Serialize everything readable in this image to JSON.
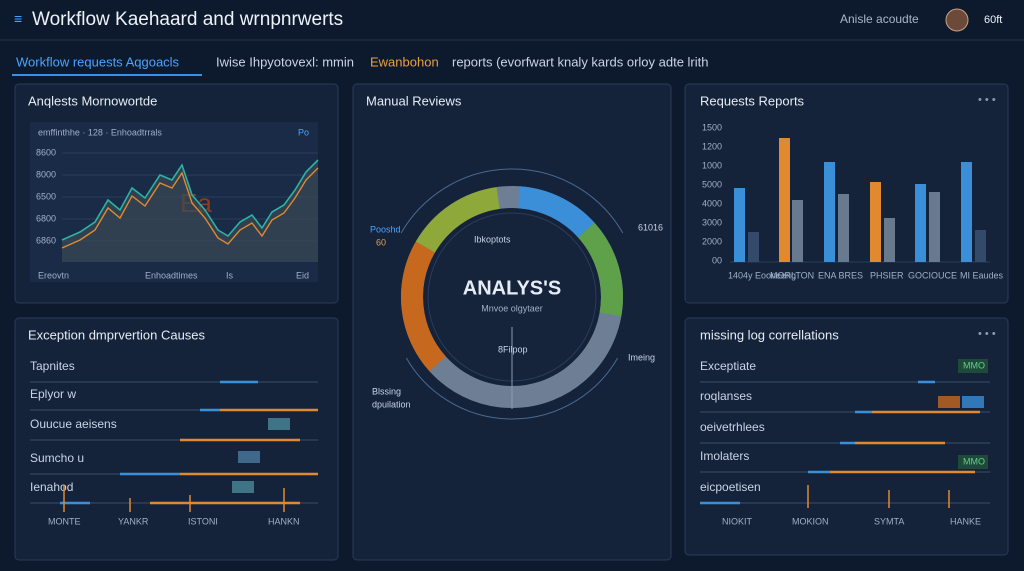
{
  "header": {
    "title": "Workflow Kaehaard and wrnpnrwerts",
    "user": "Anisle acoudte",
    "status": "60ft"
  },
  "tabs": {
    "active": "Workflow requests Aqgoacls",
    "breadcrumb": [
      "Iwise Ihpyotovexl: mmin",
      "Ewanbohon",
      "reports (evorfwart knaly kards orloy adte lrith"
    ]
  },
  "panels": [
    {
      "title": "Anqlests Mornowortde",
      "legend": "emffinthhe · 128 · Enhoadtrrals",
      "badge": "Po",
      "y_labels": [
        "8600",
        "8000",
        "6500",
        "6800",
        "6860"
      ],
      "x_labels": [
        "Ereovtn",
        "Enhoadtimes",
        "Is",
        "Eid"
      ]
    },
    {
      "title": "Manual Reviews",
      "center": "ANALYS'S",
      "center_sub": "Mnvoe olgytaer",
      "labels": [
        "Pooshd",
        "60",
        "Ibkoptots",
        "61016",
        "8Filpop",
        "Imeing",
        "Blssing",
        "dpuilation"
      ]
    },
    {
      "title": "Requests Reports",
      "y_labels": [
        "1500",
        "1200",
        "1000",
        "5000",
        "4000",
        "3000",
        "2000",
        "00"
      ],
      "x_labels": [
        "1404y Eooneeng",
        "MORLTON",
        "ENA BRES",
        "PHSIER",
        "GOCIOUCE",
        "MI Eaudes"
      ]
    },
    {
      "title": "Exception dmprvertion Causes",
      "rows": [
        "Tapnites",
        "Eplyor w",
        "Ouucue aeisens",
        "Sumcho u",
        "Ienahod"
      ],
      "x_labels": [
        "MONTE",
        "YANKR",
        "ISTONI",
        "HANKN"
      ]
    },
    {
      "title": "missing log correllations",
      "rows": [
        "Exceptiate",
        "roqlanses",
        "oeivetrhlees",
        "Imolaters",
        "eicpoetisen"
      ],
      "badges": [
        "MMO",
        "MMO"
      ],
      "x_labels": [
        "NIOKIT",
        "MOKION",
        "SYMTA",
        "HANKE"
      ]
    }
  ]
}
